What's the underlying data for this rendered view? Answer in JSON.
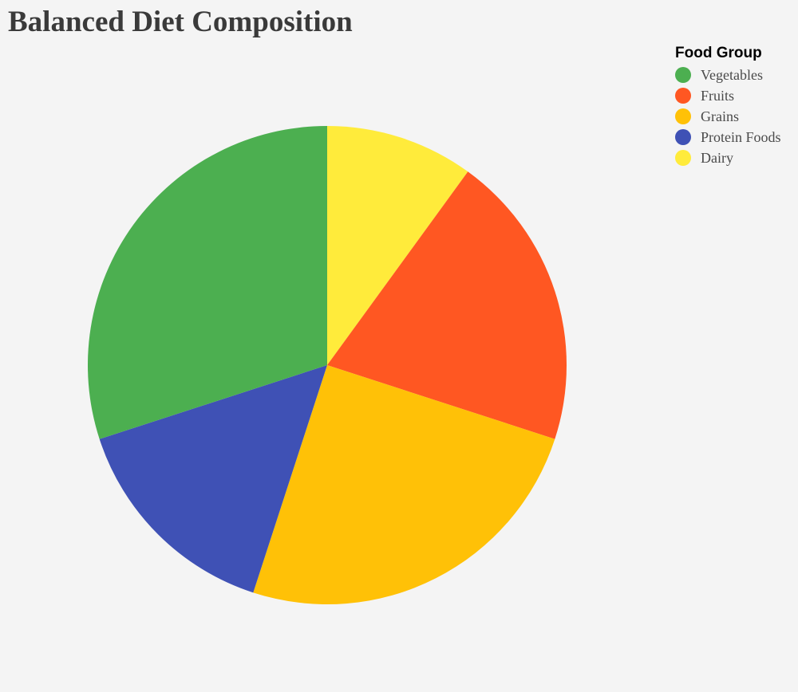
{
  "chart_data": {
    "type": "pie",
    "title": "Balanced Diet Composition",
    "legend_title": "Food Group",
    "legend_position": "top-right",
    "start": "12 o'clock, clockwise",
    "slices": [
      {
        "label": "Dairy",
        "value": 10,
        "color": "#FFEB3B"
      },
      {
        "label": "Fruits",
        "value": 20,
        "color": "#FF5722"
      },
      {
        "label": "Grains",
        "value": 25,
        "color": "#FFC107"
      },
      {
        "label": "Protein Foods",
        "value": 15,
        "color": "#3F51B5"
      },
      {
        "label": "Vegetables",
        "value": 30,
        "color": "#4CAF50"
      }
    ],
    "legend_order": [
      "Vegetables",
      "Fruits",
      "Grains",
      "Protein Foods",
      "Dairy"
    ]
  }
}
